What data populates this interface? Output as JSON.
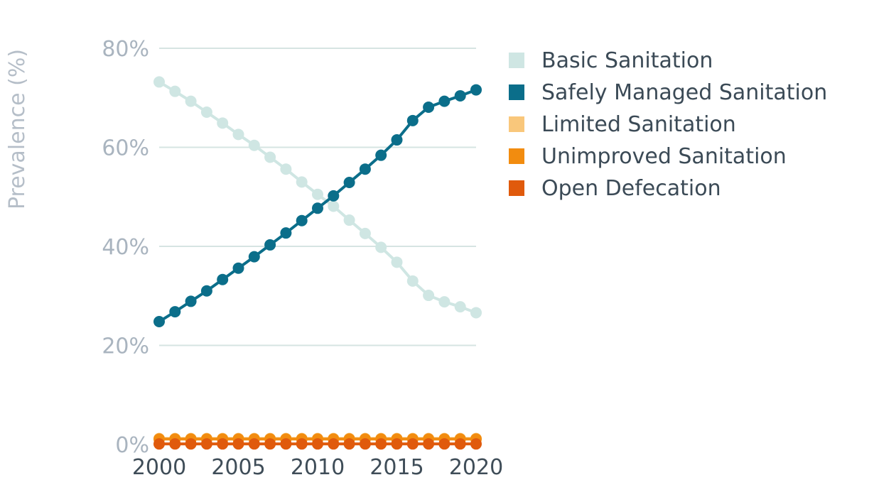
{
  "chart_data": {
    "type": "line",
    "ylabel": "Prevalence (%)",
    "xlabel": "",
    "xlim": [
      2000,
      2020
    ],
    "ylim": [
      0,
      80
    ],
    "x_ticks": [
      "2000",
      "2005",
      "2010",
      "2015",
      "2020"
    ],
    "y_ticks": [
      "0%",
      "20%",
      "40%",
      "60%",
      "80%"
    ],
    "grid": true,
    "legend_position": "right",
    "x": [
      2000,
      2001,
      2002,
      2003,
      2004,
      2005,
      2006,
      2007,
      2008,
      2009,
      2010,
      2011,
      2012,
      2013,
      2014,
      2015,
      2016,
      2017,
      2018,
      2019,
      2020
    ],
    "series": [
      {
        "name": "Basic Sanitation",
        "color": "#cfe6e3",
        "values": [
          73.2,
          71.3,
          69.3,
          67.1,
          64.9,
          62.6,
          60.4,
          58.0,
          55.6,
          53.0,
          50.5,
          48.1,
          45.3,
          42.6,
          39.8,
          36.8,
          33.0,
          30.1,
          28.8,
          27.8,
          26.6
        ]
      },
      {
        "name": "Safely Managed Sanitation",
        "color": "#0b6e8a",
        "values": [
          24.8,
          26.8,
          28.9,
          31.0,
          33.3,
          35.6,
          37.9,
          40.3,
          42.7,
          45.2,
          47.7,
          50.2,
          52.9,
          55.6,
          58.4,
          61.5,
          65.4,
          68.1,
          69.3,
          70.4,
          71.6
        ]
      },
      {
        "name": "Limited Sanitation",
        "color": "#f9c77b",
        "values": [
          1.2,
          1.2,
          1.2,
          1.2,
          1.2,
          1.2,
          1.2,
          1.2,
          1.2,
          1.2,
          1.2,
          1.2,
          1.2,
          1.2,
          1.2,
          1.2,
          1.2,
          1.2,
          1.2,
          1.2,
          1.2
        ]
      },
      {
        "name": "Unimproved Sanitation",
        "color": "#f28c0f",
        "values": [
          1.1,
          1.1,
          1.1,
          1.1,
          1.1,
          1.1,
          1.1,
          1.1,
          1.1,
          1.1,
          1.1,
          1.1,
          1.1,
          1.1,
          1.1,
          1.1,
          1.1,
          1.1,
          1.1,
          1.1,
          1.1
        ]
      },
      {
        "name": "Open Defecation",
        "color": "#e05a0c",
        "values": [
          0.1,
          0.1,
          0.1,
          0.1,
          0.1,
          0.1,
          0.1,
          0.1,
          0.1,
          0.1,
          0.1,
          0.1,
          0.1,
          0.1,
          0.1,
          0.1,
          0.1,
          0.1,
          0.1,
          0.1,
          0.1
        ]
      }
    ]
  }
}
